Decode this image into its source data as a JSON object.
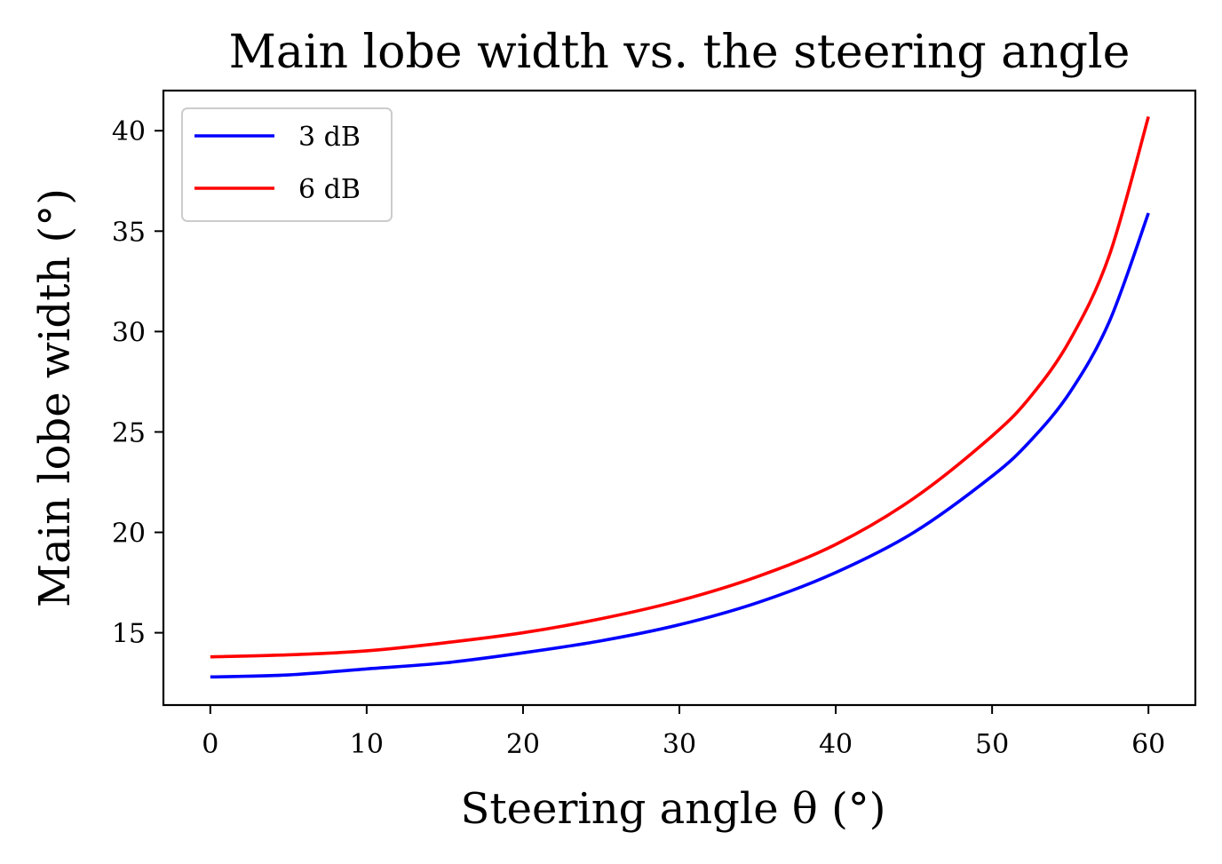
{
  "chart_data": {
    "type": "line",
    "title": "Main lobe width vs. the steering angle",
    "xlabel": "Steering angle θ (°)",
    "ylabel": "Main lobe width (°)",
    "xlim": [
      -3,
      63
    ],
    "ylim": [
      11.4,
      42
    ],
    "xticks": [
      0,
      10,
      20,
      30,
      40,
      50,
      60
    ],
    "yticks": [
      15,
      20,
      25,
      30,
      35,
      40
    ],
    "grid": false,
    "legend": "top-left",
    "x": [
      0,
      5,
      10,
      15,
      20,
      25,
      30,
      35,
      40,
      45,
      50,
      52.5,
      55,
      57.5,
      60
    ],
    "series": [
      {
        "name": "3 dB",
        "color": "#0000ff",
        "values": [
          12.8,
          12.9,
          13.2,
          13.5,
          14.0,
          14.6,
          15.4,
          16.5,
          18.0,
          20.0,
          22.8,
          24.6,
          27.0,
          30.5,
          35.9
        ]
      },
      {
        "name": "6 dB",
        "color": "#ff0000",
        "values": [
          13.8,
          13.9,
          14.1,
          14.5,
          15.0,
          15.7,
          16.6,
          17.8,
          19.4,
          21.7,
          24.8,
          26.8,
          29.6,
          33.8,
          40.7
        ]
      }
    ]
  }
}
